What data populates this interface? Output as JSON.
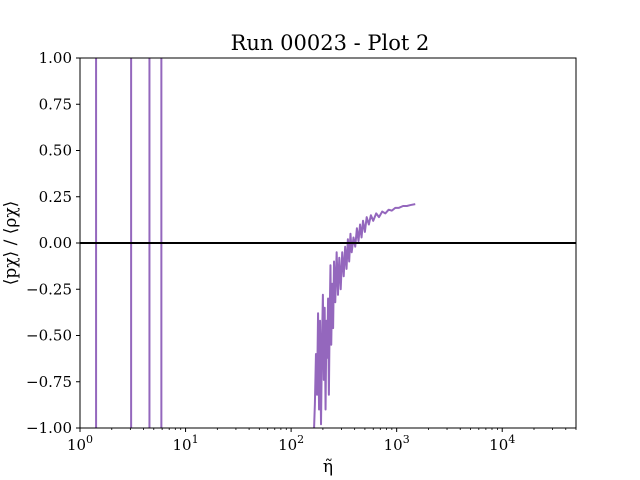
{
  "chart_data": {
    "type": "line",
    "title": "Run 00023 - Plot 2",
    "xlabel": "η̃",
    "ylabel": "⟨pχ⟩ / ⟨ρχ⟩",
    "xscale": "log",
    "xlim": [
      1,
      50000
    ],
    "ylim": [
      -1.0,
      1.0
    ],
    "grid": false,
    "legend": "none",
    "series_color": "#9467bd",
    "reference_line": {
      "y": 0.0,
      "color": "#000000"
    },
    "xticks": [
      {
        "value": 1,
        "base": "10",
        "exp": "0"
      },
      {
        "value": 10,
        "base": "10",
        "exp": "1"
      },
      {
        "value": 100,
        "base": "10",
        "exp": "2"
      },
      {
        "value": 1000,
        "base": "10",
        "exp": "3"
      },
      {
        "value": 10000,
        "base": "10",
        "exp": "4"
      }
    ],
    "yticks": [
      {
        "value": -1.0,
        "label": "−1.00"
      },
      {
        "value": -0.75,
        "label": "−0.75"
      },
      {
        "value": -0.5,
        "label": "−0.50"
      },
      {
        "value": -0.25,
        "label": "−0.25"
      },
      {
        "value": 0.0,
        "label": "0.00"
      },
      {
        "value": 0.25,
        "label": "0.25"
      },
      {
        "value": 0.5,
        "label": "0.50"
      },
      {
        "value": 0.75,
        "label": "0.75"
      },
      {
        "value": 1.0,
        "label": "1.00"
      }
    ],
    "vertical_spikes_x": [
      1.42,
      3.05,
      4.55,
      5.9
    ],
    "series": [
      {
        "values": [
          [
            165,
            -1.0
          ],
          [
            168,
            -0.87
          ],
          [
            172,
            -0.6
          ],
          [
            176,
            -0.82
          ],
          [
            180,
            -0.38
          ],
          [
            184,
            -0.9
          ],
          [
            188,
            -0.42
          ],
          [
            192,
            -0.98
          ],
          [
            196,
            -0.55
          ],
          [
            200,
            -0.28
          ],
          [
            204,
            -0.74
          ],
          [
            208,
            -0.35
          ],
          [
            212,
            -0.9
          ],
          [
            216,
            -0.42
          ],
          [
            220,
            -0.62
          ],
          [
            224,
            -0.3
          ],
          [
            228,
            -0.82
          ],
          [
            232,
            -0.4
          ],
          [
            236,
            -0.12
          ],
          [
            240,
            -0.55
          ],
          [
            245,
            -0.22
          ],
          [
            250,
            -0.46
          ],
          [
            255,
            -0.1
          ],
          [
            262,
            -0.32
          ],
          [
            270,
            -0.05
          ],
          [
            278,
            -0.28
          ],
          [
            286,
            -0.08
          ],
          [
            295,
            -0.25
          ],
          [
            305,
            -0.05
          ],
          [
            315,
            -0.18
          ],
          [
            325,
            -0.02
          ],
          [
            335,
            -0.14
          ],
          [
            345,
            0.02
          ],
          [
            355,
            -0.1
          ],
          [
            365,
            0.05
          ],
          [
            375,
            -0.05
          ],
          [
            390,
            0.03
          ],
          [
            405,
            -0.02
          ],
          [
            420,
            0.08
          ],
          [
            435,
            0.01
          ],
          [
            450,
            0.1
          ],
          [
            465,
            0.03
          ],
          [
            480,
            0.12
          ],
          [
            500,
            0.06
          ],
          [
            520,
            0.14
          ],
          [
            545,
            0.1
          ],
          [
            570,
            0.15
          ],
          [
            600,
            0.12
          ],
          [
            640,
            0.16
          ],
          [
            680,
            0.14
          ],
          [
            730,
            0.17
          ],
          [
            780,
            0.16
          ],
          [
            840,
            0.18
          ],
          [
            900,
            0.175
          ],
          [
            970,
            0.19
          ],
          [
            1050,
            0.19
          ],
          [
            1150,
            0.2
          ],
          [
            1250,
            0.2
          ],
          [
            1350,
            0.205
          ],
          [
            1500,
            0.21
          ]
        ]
      }
    ]
  }
}
